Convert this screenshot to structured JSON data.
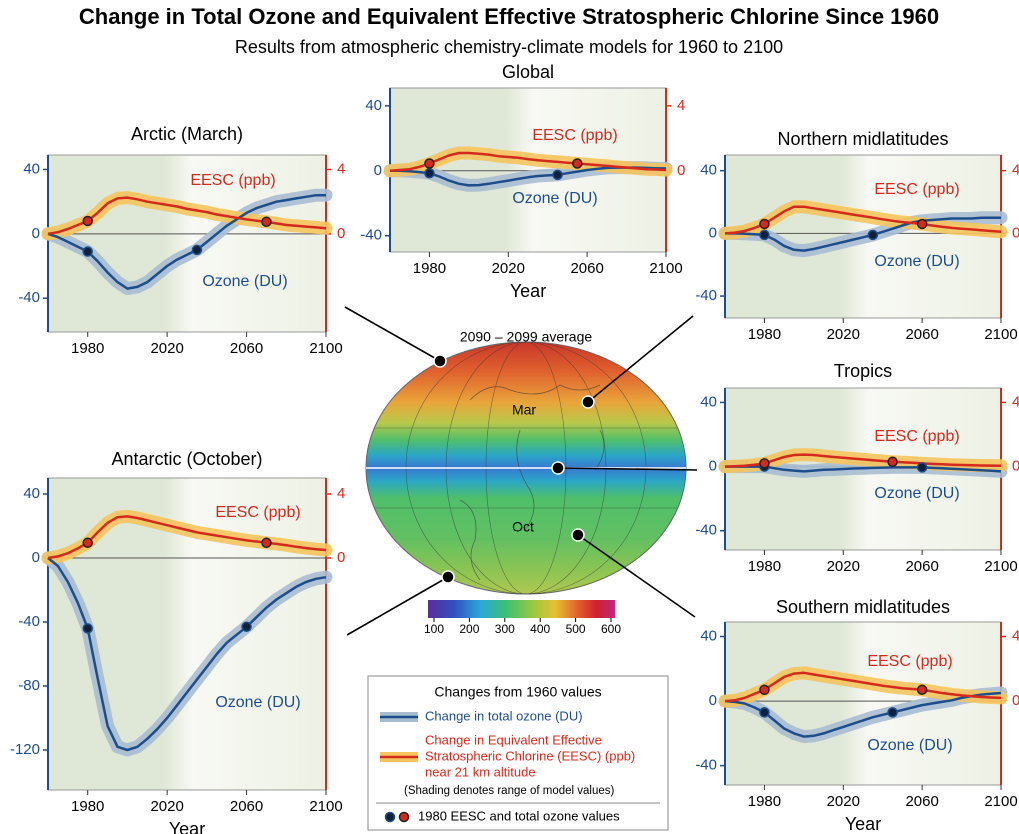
{
  "title": "Change in Total Ozone and Equivalent Effective Stratospheric Chlorine Since 1960",
  "subtitle": "Results from atmospheric chemistry-climate models for 1960 to 2100",
  "map": {
    "title": "2090 – 2099 average",
    "labels": [
      "Mar",
      "Oct"
    ],
    "colorbar": {
      "lim": [
        100,
        600
      ],
      "ticks": [
        100,
        200,
        300,
        400,
        500,
        600
      ]
    }
  },
  "legend": {
    "title": "Changes from 1960 values",
    "ozone": "Change in total ozone (DU)",
    "eesc": [
      "Change in Equivalent Effective",
      "Stratospheric Chlorine (EESC) (ppb)",
      "near 21 km altitude"
    ],
    "note": "(Shading denotes range of model values)",
    "markers": "1980 EESC and total ozone values"
  },
  "chart_data": [
    {
      "type": "line",
      "title": "Global",
      "xlabel": "Year",
      "x": [
        1960,
        1965,
        1970,
        1975,
        1980,
        1985,
        1990,
        1995,
        2000,
        2005,
        2010,
        2015,
        2020,
        2025,
        2030,
        2035,
        2040,
        2045,
        2050,
        2055,
        2060,
        2065,
        2070,
        2075,
        2080,
        2085,
        2090,
        2095,
        2100
      ],
      "xlim": [
        1960,
        2100
      ],
      "xticks": [
        1980,
        2020,
        2060,
        2100
      ],
      "ylim": [
        -50,
        51
      ],
      "yticks": [
        -40,
        0,
        40
      ],
      "y2lim": [
        -5,
        5.1
      ],
      "y2ticks": [
        0,
        4
      ],
      "series": [
        {
          "name": "Ozone (DU)",
          "color": "#1d4e8c",
          "band_color": "#a9bdd1",
          "axis": "y",
          "marker_x": [
            1980,
            2045
          ],
          "values": [
            0,
            0,
            -0.3,
            -0.8,
            -1.5,
            -3.5,
            -6,
            -8,
            -9,
            -8.8,
            -8,
            -7,
            -6,
            -5,
            -4,
            -3.2,
            -2.8,
            -2.5,
            -1.5,
            -0.5,
            0.5,
            1.2,
            1.8,
            2,
            2,
            2,
            1.8,
            1.5,
            1.5
          ]
        },
        {
          "name": "EESC (ppb)",
          "color": "#d42a1e",
          "band_color": "#f6c45c",
          "axis": "y2",
          "marker_x": [
            1980,
            2055
          ],
          "values": [
            0,
            0.05,
            0.1,
            0.25,
            0.45,
            0.7,
            0.95,
            1.1,
            1.1,
            1.05,
            1.0,
            0.9,
            0.85,
            0.8,
            0.72,
            0.65,
            0.6,
            0.55,
            0.5,
            0.45,
            0.4,
            0.35,
            0.3,
            0.25,
            0.2,
            0.15,
            0.1,
            0.08,
            0.05
          ]
        }
      ]
    },
    {
      "type": "line",
      "title": "Arctic (March)",
      "x": [
        1960,
        1965,
        1970,
        1975,
        1980,
        1985,
        1990,
        1995,
        2000,
        2005,
        2010,
        2015,
        2020,
        2025,
        2030,
        2035,
        2040,
        2045,
        2050,
        2055,
        2060,
        2065,
        2070,
        2075,
        2080,
        2085,
        2090,
        2095,
        2100
      ],
      "xlim": [
        1960,
        2100
      ],
      "xticks": [
        1980,
        2020,
        2060,
        2100
      ],
      "ylim": [
        -61,
        49
      ],
      "yticks": [
        -40,
        0,
        40
      ],
      "y2lim": [
        -6.1,
        4.9
      ],
      "y2ticks": [
        0,
        4
      ],
      "series": [
        {
          "name": "Ozone (DU)",
          "color": "#1d4e8c",
          "band_color": "#a9bdd1",
          "axis": "y",
          "marker_x": [
            1980,
            2035
          ],
          "values": [
            0,
            -2,
            -5,
            -8,
            -11,
            -17,
            -24,
            -30,
            -34,
            -33,
            -30,
            -25,
            -20,
            -16,
            -13,
            -10,
            -5,
            0,
            5,
            9,
            13,
            16,
            18,
            20,
            21,
            22,
            23,
            24,
            24
          ]
        },
        {
          "name": "EESC (ppb)",
          "color": "#d42a1e",
          "band_color": "#f6c45c",
          "axis": "y2",
          "marker_x": [
            1980,
            2070
          ],
          "values": [
            0,
            0.1,
            0.3,
            0.55,
            0.8,
            1.3,
            1.9,
            2.2,
            2.25,
            2.15,
            2.0,
            1.9,
            1.8,
            1.7,
            1.55,
            1.45,
            1.35,
            1.2,
            1.1,
            1.0,
            0.9,
            0.82,
            0.75,
            0.65,
            0.55,
            0.5,
            0.45,
            0.4,
            0.35
          ]
        }
      ]
    },
    {
      "type": "line",
      "title": "Northern midlatitudes",
      "x": [
        1960,
        1965,
        1970,
        1975,
        1980,
        1985,
        1990,
        1995,
        2000,
        2005,
        2010,
        2015,
        2020,
        2025,
        2030,
        2035,
        2040,
        2045,
        2050,
        2055,
        2060,
        2065,
        2070,
        2075,
        2080,
        2085,
        2090,
        2095,
        2100
      ],
      "xlim": [
        1960,
        2100
      ],
      "xticks": [
        1980,
        2020,
        2060,
        2100
      ],
      "ylim": [
        -54,
        50
      ],
      "yticks": [
        -40,
        0,
        40
      ],
      "y2lim": [
        -5.4,
        5.0
      ],
      "y2ticks": [
        0,
        4
      ],
      "series": [
        {
          "name": "Ozone (DU)",
          "color": "#1d4e8c",
          "band_color": "#a9bdd1",
          "axis": "y",
          "marker_x": [
            1980,
            2035
          ],
          "values": [
            0,
            0,
            -0.3,
            -0.6,
            -1,
            -4,
            -8,
            -10.5,
            -11,
            -10,
            -8.5,
            -7,
            -5.5,
            -4,
            -2.5,
            -1,
            1,
            3,
            5,
            7,
            8,
            8.5,
            9,
            9.5,
            9.5,
            9.5,
            10,
            10,
            10
          ]
        },
        {
          "name": "EESC (ppb)",
          "color": "#d42a1e",
          "band_color": "#f6c45c",
          "axis": "y2",
          "marker_x": [
            1980,
            2060
          ],
          "values": [
            0,
            0.05,
            0.15,
            0.35,
            0.6,
            1.0,
            1.4,
            1.7,
            1.7,
            1.6,
            1.5,
            1.4,
            1.3,
            1.2,
            1.1,
            1.0,
            0.9,
            0.8,
            0.72,
            0.66,
            0.6,
            0.5,
            0.42,
            0.35,
            0.3,
            0.25,
            0.2,
            0.15,
            0.1
          ]
        }
      ]
    },
    {
      "type": "line",
      "title": "Tropics",
      "x": [
        1960,
        1965,
        1970,
        1975,
        1980,
        1985,
        1990,
        1995,
        2000,
        2005,
        2010,
        2015,
        2020,
        2025,
        2030,
        2035,
        2040,
        2045,
        2050,
        2055,
        2060,
        2065,
        2070,
        2075,
        2080,
        2085,
        2090,
        2095,
        2100
      ],
      "xlim": [
        1960,
        2100
      ],
      "xticks": [
        1980,
        2020,
        2060,
        2100
      ],
      "ylim": [
        -52,
        49
      ],
      "yticks": [
        -40,
        0,
        40
      ],
      "y2lim": [
        -5.2,
        4.9
      ],
      "y2ticks": [
        0,
        4
      ],
      "series": [
        {
          "name": "Ozone (DU)",
          "color": "#1d4e8c",
          "band_color": "#a9bdd1",
          "axis": "y",
          "marker_x": [
            1980,
            2060
          ],
          "values": [
            0,
            0,
            0,
            0,
            0,
            -1,
            -2,
            -2.5,
            -3,
            -2.5,
            -2,
            -1.8,
            -1.5,
            -1.2,
            -1,
            -0.8,
            -0.6,
            -0.5,
            -0.5,
            -0.5,
            -0.5,
            -0.8,
            -1,
            -1.3,
            -1.6,
            -2,
            -2.3,
            -2.6,
            -3
          ]
        },
        {
          "name": "EESC (ppb)",
          "color": "#d42a1e",
          "band_color": "#f6c45c",
          "axis": "y2",
          "marker_x": [
            1980,
            2045
          ],
          "values": [
            0,
            0.02,
            0.05,
            0.12,
            0.2,
            0.4,
            0.6,
            0.72,
            0.75,
            0.72,
            0.66,
            0.6,
            0.55,
            0.5,
            0.45,
            0.4,
            0.35,
            0.3,
            0.27,
            0.24,
            0.2,
            0.17,
            0.14,
            0.12,
            0.1,
            0.08,
            0.07,
            0.06,
            0.05
          ]
        }
      ]
    },
    {
      "type": "line",
      "title": "Antarctic (October)",
      "xlabel": "Year",
      "x": [
        1960,
        1965,
        1970,
        1975,
        1980,
        1985,
        1990,
        1995,
        2000,
        2005,
        2010,
        2015,
        2020,
        2025,
        2030,
        2035,
        2040,
        2045,
        2050,
        2055,
        2060,
        2065,
        2070,
        2075,
        2080,
        2085,
        2090,
        2095,
        2100
      ],
      "xlim": [
        1960,
        2100
      ],
      "xticks": [
        1980,
        2020,
        2060,
        2100
      ],
      "ylim": [
        -145,
        50
      ],
      "yticks": [
        -120,
        -80,
        -40,
        0,
        40
      ],
      "y2lim": [
        -14.5,
        5
      ],
      "y2ticks": [
        0,
        4
      ],
      "series": [
        {
          "name": "Ozone (DU)",
          "color": "#1d4e8c",
          "band_color": "#a9bdd1",
          "axis": "y",
          "marker_x": [
            1980,
            2060
          ],
          "values": [
            0,
            -5,
            -15,
            -28,
            -44,
            -75,
            -105,
            -118,
            -120,
            -118,
            -113,
            -107,
            -100,
            -92,
            -84,
            -76,
            -68,
            -60,
            -53,
            -48,
            -43,
            -37,
            -31,
            -26,
            -22,
            -18,
            -15,
            -13,
            -12
          ]
        },
        {
          "name": "EESC (ppb)",
          "color": "#d42a1e",
          "band_color": "#f6c45c",
          "axis": "y2",
          "marker_x": [
            1980,
            2070
          ],
          "values": [
            0,
            0.1,
            0.3,
            0.6,
            0.95,
            1.6,
            2.2,
            2.55,
            2.6,
            2.5,
            2.35,
            2.2,
            2.05,
            1.9,
            1.75,
            1.6,
            1.5,
            1.4,
            1.3,
            1.2,
            1.1,
            1.03,
            0.95,
            0.88,
            0.8,
            0.7,
            0.62,
            0.55,
            0.5
          ]
        }
      ]
    },
    {
      "type": "line",
      "title": "Southern midlatitudes",
      "xlabel": "Year",
      "x": [
        1960,
        1965,
        1970,
        1975,
        1980,
        1985,
        1990,
        1995,
        2000,
        2005,
        2010,
        2015,
        2020,
        2025,
        2030,
        2035,
        2040,
        2045,
        2050,
        2055,
        2060,
        2065,
        2070,
        2075,
        2080,
        2085,
        2090,
        2095,
        2100
      ],
      "xlim": [
        1960,
        2100
      ],
      "xticks": [
        1980,
        2020,
        2060,
        2100
      ],
      "ylim": [
        -52,
        49
      ],
      "yticks": [
        -40,
        0,
        40
      ],
      "y2lim": [
        -5.2,
        4.9
      ],
      "y2ticks": [
        0,
        4
      ],
      "series": [
        {
          "name": "Ozone (DU)",
          "color": "#1d4e8c",
          "band_color": "#a9bdd1",
          "axis": "y",
          "marker_x": [
            1980,
            2045
          ],
          "values": [
            0,
            -0.5,
            -1.5,
            -4,
            -7,
            -12,
            -17,
            -20,
            -22,
            -21.5,
            -20,
            -18,
            -16,
            -14,
            -12,
            -10,
            -8.5,
            -7,
            -5.5,
            -4,
            -2.5,
            -1.5,
            -0.5,
            0.5,
            2,
            3,
            4,
            4.5,
            5
          ]
        },
        {
          "name": "EESC (ppb)",
          "color": "#d42a1e",
          "band_color": "#f6c45c",
          "axis": "y2",
          "marker_x": [
            1980,
            2060
          ],
          "values": [
            0,
            0.05,
            0.2,
            0.45,
            0.7,
            1.1,
            1.5,
            1.7,
            1.75,
            1.65,
            1.55,
            1.45,
            1.35,
            1.25,
            1.15,
            1.05,
            0.95,
            0.87,
            0.8,
            0.75,
            0.7,
            0.6,
            0.5,
            0.42,
            0.35,
            0.3,
            0.25,
            0.22,
            0.2
          ]
        }
      ]
    }
  ]
}
